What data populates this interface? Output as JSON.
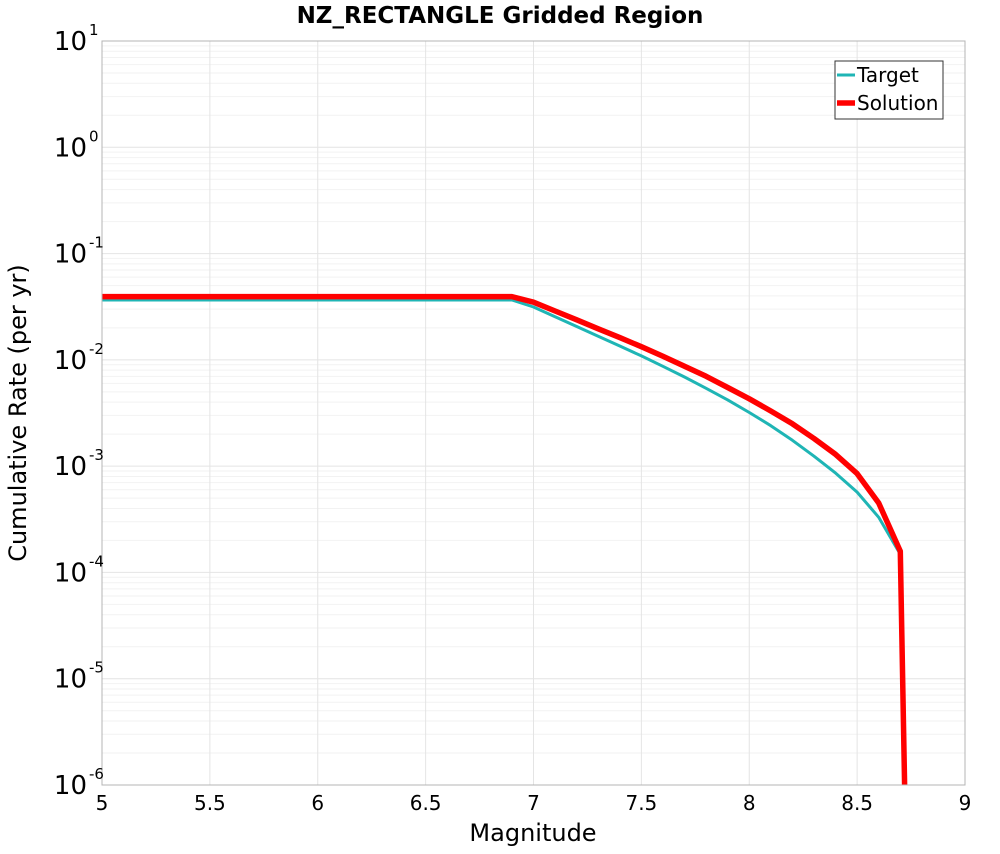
{
  "chart_data": {
    "type": "line",
    "title": "NZ_RECTANGLE Gridded Region",
    "xlabel": "Magnitude",
    "ylabel": "Cumulative Rate (per yr)",
    "xlim": [
      5,
      9
    ],
    "ylim": [
      1e-06,
      10
    ],
    "yscale": "log",
    "grid": true,
    "legend_position": "top-right",
    "x_ticks": [
      "5",
      "5.5",
      "6",
      "6.5",
      "7",
      "7.5",
      "8",
      "8.5",
      "9"
    ],
    "y_ticks": [
      {
        "base": "10",
        "exp": "-6",
        "value": 1e-06
      },
      {
        "base": "10",
        "exp": "-5",
        "value": 1e-05
      },
      {
        "base": "10",
        "exp": "-4",
        "value": 0.0001
      },
      {
        "base": "10",
        "exp": "-3",
        "value": 0.001
      },
      {
        "base": "10",
        "exp": "-2",
        "value": 0.01
      },
      {
        "base": "10",
        "exp": "-1",
        "value": 0.1
      },
      {
        "base": "10",
        "exp": "0",
        "value": 1
      },
      {
        "base": "10",
        "exp": "1",
        "value": 10
      }
    ],
    "series": [
      {
        "name": "Target",
        "color": "#1fb5b5",
        "x": [
          5.0,
          6.9,
          7.0,
          7.1,
          7.2,
          7.3,
          7.4,
          7.5,
          7.6,
          7.7,
          7.8,
          7.9,
          8.0,
          8.1,
          8.2,
          8.3,
          8.4,
          8.5,
          8.6,
          8.7
        ],
        "y": [
          0.0366,
          0.0366,
          0.0314,
          0.0254,
          0.0206,
          0.0167,
          0.0135,
          0.0109,
          0.0087,
          0.0069,
          0.0054,
          0.0042,
          0.0032,
          0.0024,
          0.00175,
          0.00124,
          0.00086,
          0.00057,
          0.00033,
          0.000148
        ]
      },
      {
        "name": "Solution",
        "color": "#ff0000",
        "x": [
          5.0,
          6.9,
          7.0,
          7.1,
          7.2,
          7.3,
          7.4,
          7.5,
          7.6,
          7.7,
          7.8,
          7.9,
          8.0,
          8.1,
          8.2,
          8.3,
          8.4,
          8.5,
          8.6,
          8.7,
          8.72
        ],
        "y": [
          0.0394,
          0.0394,
          0.0349,
          0.0288,
          0.0238,
          0.0196,
          0.0162,
          0.0133,
          0.0108,
          0.0087,
          0.007,
          0.0055,
          0.0043,
          0.0033,
          0.0025,
          0.00182,
          0.00129,
          0.00085,
          0.00045,
          0.000158,
          1e-06
        ]
      }
    ]
  }
}
